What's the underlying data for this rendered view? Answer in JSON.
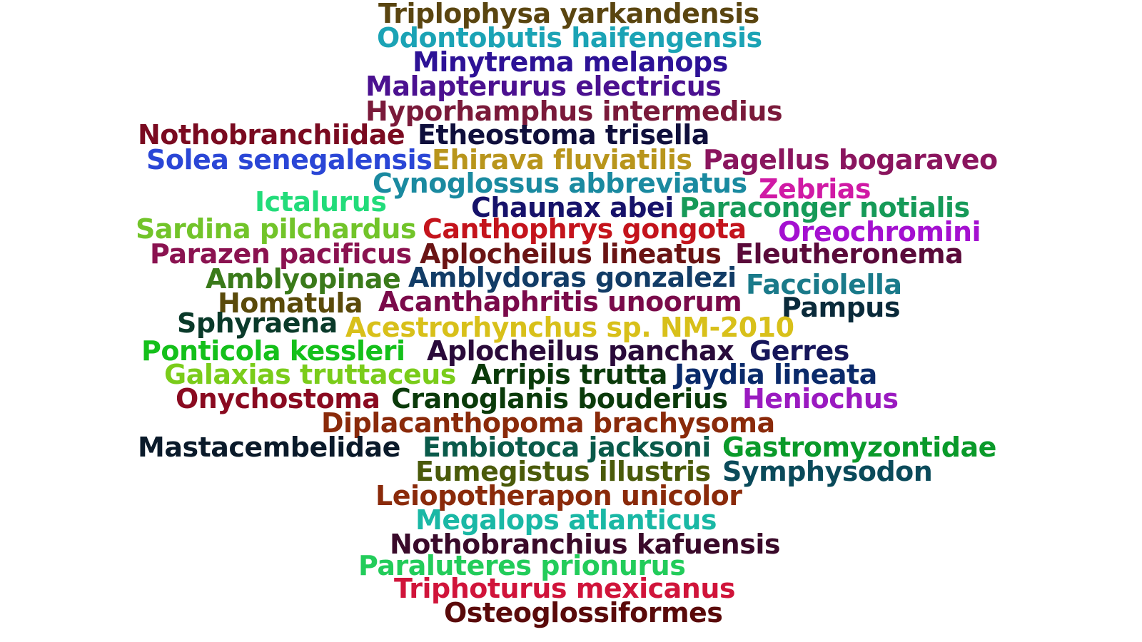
{
  "words": [
    {
      "text": "Triplophysa yarkandensis",
      "color": "#5a4510"
    },
    {
      "text": "Odontobutis haifengensis",
      "color": "#1ba3b5"
    },
    {
      "text": "Minytrema melanops",
      "color": "#2d1296"
    },
    {
      "text": "Malapterurus electricus",
      "color": "#4b1190"
    },
    {
      "text": "Hyporhamphus intermedius",
      "color": "#7a1a3a"
    },
    {
      "text": "Nothobranchiidae",
      "color": "#7a0a20"
    },
    {
      "text": "Etheostoma trisella",
      "color": "#0f0f3c"
    },
    {
      "text": "Solea senegalensis",
      "color": "#2a46d6"
    },
    {
      "text": "Ehirava fluviatilis",
      "color": "#b8951c"
    },
    {
      "text": "Pagellus bogaraveo",
      "color": "#8a155e"
    },
    {
      "text": "Cynoglossus abbreviatus",
      "color": "#1a8aa0"
    },
    {
      "text": "Zebrias",
      "color": "#d01aa5"
    },
    {
      "text": "Ictalurus",
      "color": "#22dc7a"
    },
    {
      "text": "Chaunax abei",
      "color": "#16126a"
    },
    {
      "text": "Paraconger notialis",
      "color": "#169a58"
    },
    {
      "text": "Sardina pilchardus",
      "color": "#72c42a"
    },
    {
      "text": "Canthophrys gongota",
      "color": "#c4141c"
    },
    {
      "text": "Oreochromini",
      "color": "#a410d0"
    },
    {
      "text": "Parazen pacificus",
      "color": "#8a1250"
    },
    {
      "text": "Aplocheilus lineatus",
      "color": "#6a1414"
    },
    {
      "text": "Eleutheronema",
      "color": "#5a0a3a"
    },
    {
      "text": "Amblyopinae",
      "color": "#3a7a1a"
    },
    {
      "text": "Amblydoras gonzalezi",
      "color": "#123c66"
    },
    {
      "text": "Facciolella",
      "color": "#1a7a8a"
    },
    {
      "text": "Homatula",
      "color": "#5a4a0a"
    },
    {
      "text": "Acanthaphritis unoorum",
      "color": "#7a0a4a"
    },
    {
      "text": "Pampus",
      "color": "#0a2a3a"
    },
    {
      "text": "Sphyraena",
      "color": "#0a3a2a"
    },
    {
      "text": "Acestrorhynchus sp. NM-2010",
      "color": "#d8c01a"
    },
    {
      "text": "Ponticola kessleri",
      "color": "#14c01a"
    },
    {
      "text": "Aplocheilus panchax",
      "color": "#2a0a3a"
    },
    {
      "text": "Gerres",
      "color": "#16165a"
    },
    {
      "text": "Galaxias truttaceus",
      "color": "#7acc1a"
    },
    {
      "text": "Arripis trutta",
      "color": "#0a3a0a"
    },
    {
      "text": "Jaydia lineata",
      "color": "#0a2a6a"
    },
    {
      "text": "Onychostoma",
      "color": "#8a0a20"
    },
    {
      "text": "Cranoglanis bouderius",
      "color": "#0a3a0a"
    },
    {
      "text": "Heniochus",
      "color": "#9a1ac0"
    },
    {
      "text": "Diplacanthopoma brachysoma",
      "color": "#8a2a0a"
    },
    {
      "text": "Mastacembelidae",
      "color": "#0a1a2a"
    },
    {
      "text": "Embiotoca jacksoni",
      "color": "#0a5a4a"
    },
    {
      "text": "Gastromyzontidae",
      "color": "#0a9a2a"
    },
    {
      "text": "Eumegistus illustris",
      "color": "#4a5a0a"
    },
    {
      "text": "Symphysodon",
      "color": "#0a4a5a"
    },
    {
      "text": "Leiopotherapon unicolor",
      "color": "#8a2a0a"
    },
    {
      "text": "Megalops atlanticus",
      "color": "#1ab8a5"
    },
    {
      "text": "Nothobranchius kafuensis",
      "color": "#3a0a2a"
    },
    {
      "text": "Paraluteres prionurus",
      "color": "#22cc5a"
    },
    {
      "text": "Triphoturus mexicanus",
      "color": "#d0143a"
    },
    {
      "text": "Osteoglossiformes",
      "color": "#5a0a0a"
    }
  ]
}
